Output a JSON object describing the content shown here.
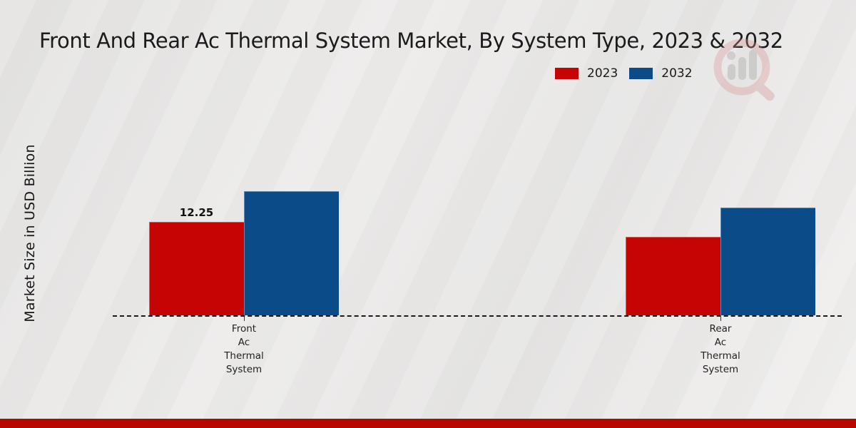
{
  "page": {
    "background_color": "#e8e7e6",
    "footer_bar_color": "#b80700"
  },
  "branding": {
    "watermark_icon": "magnifier-bar-chart-logo"
  },
  "chart_data": {
    "type": "bar",
    "title": "Front And Rear Ac Thermal System Market, By System Type, 2023 & 2032",
    "xlabel": "",
    "ylabel": "Market Size in USD Billion",
    "categories": [
      "Front Ac Thermal System",
      "Rear Ac Thermal System"
    ],
    "categories_multiline": [
      [
        "Front",
        "Ac",
        "Thermal",
        "System"
      ],
      [
        "Rear",
        "Ac",
        "Thermal",
        "System"
      ]
    ],
    "series": [
      {
        "name": "2023",
        "color": "#c70404",
        "values": [
          12.25,
          10.3
        ],
        "data_labels": [
          "12.25",
          ""
        ]
      },
      {
        "name": "2032",
        "color": "#0b4b87",
        "values": [
          16.3,
          14.1
        ],
        "data_labels": [
          "",
          ""
        ]
      }
    ],
    "ylim": [
      0,
      20
    ],
    "grid": false,
    "y_ticks_visible": false,
    "legend_position": "top-right",
    "axis_line_style": "dashed-horizontal-baseline"
  }
}
